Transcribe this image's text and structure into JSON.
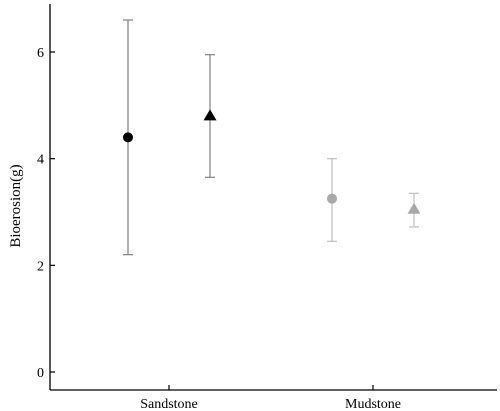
{
  "chart_data": {
    "type": "scatter",
    "title": "",
    "xlabel": "",
    "ylabel": "Bioerosion(g)",
    "categories": [
      "Sandstone",
      "Mudstone"
    ],
    "ylim": [
      -0.2,
      6.9
    ],
    "yticks": [
      0,
      2,
      4,
      6
    ],
    "grid": false,
    "legend": "none",
    "series": [
      {
        "marker": "circle",
        "color": "#000000",
        "errorbar_color": "#8a8a8a",
        "values": [
          4.4,
          3.25
        ],
        "lower": [
          2.2,
          2.45
        ],
        "upper": [
          6.6,
          4.0
        ],
        "colors": [
          "#000000",
          "#a8a8a8"
        ]
      },
      {
        "marker": "triangle",
        "color": "#000000",
        "errorbar_color": "#8a8a8a",
        "values": [
          4.8,
          3.05
        ],
        "lower": [
          3.65,
          2.72
        ],
        "upper": [
          5.95,
          3.35
        ],
        "colors": [
          "#000000",
          "#a8a8a8"
        ]
      }
    ]
  }
}
